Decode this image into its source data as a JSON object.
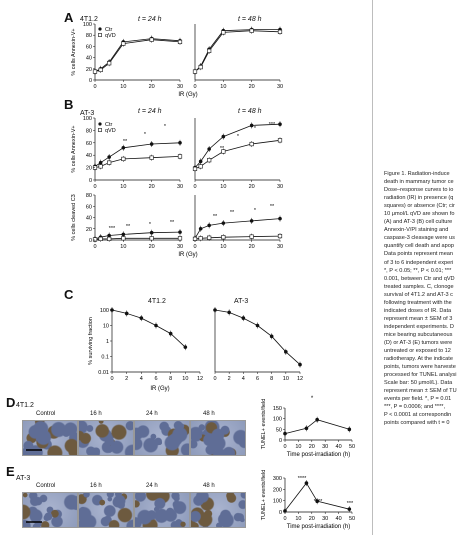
{
  "panels": {
    "A": {
      "letter": "A",
      "cell": "4T1.2",
      "t1": "t = 24 h",
      "t2": "t = 48 h",
      "ylabel": "% cells Annexin-V+",
      "legend": [
        "Ctr",
        "qVD"
      ],
      "yticks": [
        "100",
        "80",
        "60",
        "40",
        "20",
        "0"
      ]
    },
    "B": {
      "letter": "B",
      "cell": "AT-3",
      "t1": "t = 24 h",
      "t2": "t = 48 h",
      "ylabel_top": "% cells Annexin-V+",
      "ylabel_bottom": "% cells cleaved C3",
      "legend": [
        "Ctr",
        "qVD"
      ],
      "yticks_top": [
        "100",
        "80",
        "60",
        "40",
        "20",
        "0"
      ],
      "yticks_bottom": [
        "80",
        "60",
        "40",
        "20",
        "0"
      ]
    },
    "IR": {
      "xlabel": "IR (Gy)",
      "xticks": [
        "0",
        "10",
        "20",
        "30"
      ],
      "sig": [
        "*",
        "**",
        "***"
      ]
    },
    "C": {
      "letter": "C",
      "cell1": "4T1.2",
      "cell2": "AT-3",
      "ylabel": "% surviving fraction",
      "yticks": [
        "100",
        "10",
        "1",
        "0.1",
        "0.01"
      ],
      "xticks": [
        "0",
        "2",
        "4",
        "6",
        "8",
        "10",
        "12"
      ],
      "xlabel": "IR (Gy)"
    },
    "D": {
      "letter": "D",
      "cell": "4T1.2",
      "cols": [
        "Control",
        "16 h",
        "24 h",
        "48 h"
      ],
      "ylabel": "TUNEL+ events/field",
      "yticks": [
        "150",
        "100",
        "50",
        "0"
      ],
      "xticks": [
        "0",
        "10",
        "20",
        "30",
        "40",
        "50"
      ],
      "xlabel": "Time post-irradiation (h)",
      "sig": "*"
    },
    "E": {
      "letter": "E",
      "cell": "AT-3",
      "cols": [
        "Control",
        "16 h",
        "24 h",
        "48 h"
      ],
      "ylabel": "TUNEL+ events/field",
      "yticks": [
        "300",
        "200",
        "100",
        "0"
      ],
      "xticks": [
        "0",
        "10",
        "20",
        "30",
        "40",
        "50"
      ],
      "xlabel": "Time post-irradiation (h)",
      "sig": [
        "****",
        "****",
        "***"
      ]
    }
  },
  "caption": [
    "Figure 1.  Radiation-induce",
    "death in mammary tumor ce",
    "Dose–response curves to io",
    "radiation (IR) in presence (q",
    "squares) or absence (Ctr; cir",
    "10 μmol/L qVD are shown fo",
    "(A) and AT-3 (B) cell culture",
    "Annexin-V/PI staining and",
    "caspase-3 cleavage were us",
    "quantify cell death and apop",
    "Data points represent mean",
    "of 3 to 6 independent experi",
    "*, P < 0.05; **, P < 0.01; ***",
    "0.001, between Ctr and qVD",
    "treated samples. C, clonoge",
    "survival of 4T1.2 and AT-3 c",
    "following treatment with the",
    "indicated doses of IR. Data",
    "represent mean ± SEM of 3",
    "independent experiments. D",
    "mice bearing subcutaneous",
    "(D) or AT-3 (E) tumors were",
    "untreated or exposed to 12",
    "radiotherapy. At the indicate",
    "points, tumors were harveste",
    "processed for TUNEL analysi",
    "Scale bar: 50 μmol/L). Data",
    "represent mean ± SEM of TU",
    "events per field. *, P = 0.01",
    "***, P = 0.0006; and ****,",
    "P < 0.0001 at correspondin",
    "points compared with t = 0"
  ],
  "colors": {
    "ink": "#111111",
    "photo_bg": "#9aa6c4",
    "photo_stain": "#6d5a3f"
  },
  "chart_data": [
    {
      "type": "line",
      "panel": "A",
      "subtitle": "t = 24 h",
      "xlabel": "IR (Gy)",
      "ylabel": "% cells Annexin-V+",
      "xlim": [
        0,
        30
      ],
      "ylim": [
        0,
        100
      ],
      "series": [
        {
          "name": "Ctr",
          "x": [
            0,
            2,
            5,
            10,
            20,
            30
          ],
          "y": [
            15,
            20,
            32,
            68,
            74,
            70
          ]
        },
        {
          "name": "qVD",
          "x": [
            0,
            2,
            5,
            10,
            20,
            30
          ],
          "y": [
            15,
            18,
            30,
            65,
            72,
            68
          ]
        }
      ]
    },
    {
      "type": "line",
      "panel": "A",
      "subtitle": "t = 48 h",
      "xlabel": "IR (Gy)",
      "ylabel": "",
      "xlim": [
        0,
        30
      ],
      "ylim": [
        0,
        100
      ],
      "series": [
        {
          "name": "Ctr",
          "x": [
            0,
            2,
            5,
            10,
            20,
            30
          ],
          "y": [
            15,
            25,
            55,
            88,
            90,
            90
          ]
        },
        {
          "name": "qVD",
          "x": [
            0,
            2,
            5,
            10,
            20,
            30
          ],
          "y": [
            15,
            23,
            52,
            85,
            88,
            86
          ]
        }
      ]
    },
    {
      "type": "line",
      "panel": "B",
      "subtitle": "t = 24 h",
      "xlabel": "IR (Gy)",
      "ylabel": "% cells Annexin-V+",
      "xlim": [
        0,
        30
      ],
      "ylim": [
        0,
        100
      ],
      "series": [
        {
          "name": "Ctr",
          "x": [
            0,
            2,
            5,
            10,
            20,
            30
          ],
          "y": [
            22,
            28,
            37,
            52,
            58,
            60
          ]
        },
        {
          "name": "qVD",
          "x": [
            0,
            2,
            5,
            10,
            20,
            30
          ],
          "y": [
            20,
            22,
            28,
            34,
            36,
            38
          ]
        }
      ]
    },
    {
      "type": "line",
      "panel": "B",
      "subtitle": "t = 48 h",
      "xlabel": "IR (Gy)",
      "ylabel": "",
      "xlim": [
        0,
        30
      ],
      "ylim": [
        0,
        100
      ],
      "series": [
        {
          "name": "Ctr",
          "x": [
            0,
            2,
            5,
            10,
            20,
            30
          ],
          "y": [
            20,
            30,
            50,
            70,
            88,
            90
          ]
        },
        {
          "name": "qVD",
          "x": [
            0,
            2,
            5,
            10,
            20,
            30
          ],
          "y": [
            18,
            22,
            32,
            46,
            58,
            64
          ]
        }
      ]
    },
    {
      "type": "line",
      "panel": "B",
      "subtitle": "24 h",
      "xlabel": "IR (Gy)",
      "ylabel": "% cells cleaved C3",
      "xlim": [
        0,
        30
      ],
      "ylim": [
        0,
        80
      ],
      "series": [
        {
          "name": "Ctr",
          "x": [
            0,
            2,
            5,
            10,
            20,
            30
          ],
          "y": [
            2,
            5,
            8,
            10,
            13,
            14
          ]
        },
        {
          "name": "qVD",
          "x": [
            0,
            2,
            5,
            10,
            20,
            30
          ],
          "y": [
            1,
            2,
            2,
            3,
            3,
            3
          ]
        }
      ]
    },
    {
      "type": "line",
      "panel": "B",
      "subtitle": "48 h",
      "xlabel": "IR (Gy)",
      "ylabel": "",
      "xlim": [
        0,
        30
      ],
      "ylim": [
        0,
        80
      ],
      "series": [
        {
          "name": "Ctr",
          "x": [
            0,
            2,
            5,
            10,
            20,
            30
          ],
          "y": [
            3,
            20,
            26,
            30,
            34,
            38
          ]
        },
        {
          "name": "qVD",
          "x": [
            0,
            2,
            5,
            10,
            20,
            30
          ],
          "y": [
            2,
            3,
            4,
            5,
            6,
            7
          ]
        }
      ]
    },
    {
      "type": "line",
      "panel": "C",
      "subtitle": "4T1.2",
      "xlabel": "IR (Gy)",
      "ylabel": "% surviving fraction",
      "xlim": [
        0,
        12
      ],
      "yscale": "log",
      "ylim": [
        0.01,
        100
      ],
      "series": [
        {
          "x": [
            0,
            2,
            4,
            6,
            8,
            10
          ],
          "y": [
            100,
            60,
            30,
            10,
            3,
            0.4
          ]
        }
      ]
    },
    {
      "type": "line",
      "panel": "C",
      "subtitle": "AT-3",
      "xlabel": "IR (Gy)",
      "ylabel": "",
      "xlim": [
        0,
        12
      ],
      "yscale": "log",
      "ylim": [
        0.01,
        100
      ],
      "series": [
        {
          "x": [
            0,
            2,
            4,
            6,
            8,
            10,
            12
          ],
          "y": [
            100,
            70,
            30,
            10,
            2,
            0.2,
            0.03
          ]
        }
      ]
    },
    {
      "type": "line",
      "panel": "D",
      "xlabel": "Time post-irradiation (h)",
      "ylabel": "TUNEL+ events/field",
      "xlim": [
        0,
        50
      ],
      "ylim": [
        0,
        150
      ],
      "series": [
        {
          "x": [
            0,
            16,
            24,
            48
          ],
          "y": [
            30,
            55,
            95,
            50
          ]
        }
      ]
    },
    {
      "type": "line",
      "panel": "E",
      "xlabel": "Time post-irradiation (h)",
      "ylabel": "TUNEL+ events/field",
      "xlim": [
        0,
        50
      ],
      "ylim": [
        0,
        300
      ],
      "series": [
        {
          "x": [
            0,
            16,
            24,
            48
          ],
          "y": [
            10,
            255,
            95,
            25
          ]
        }
      ]
    }
  ]
}
